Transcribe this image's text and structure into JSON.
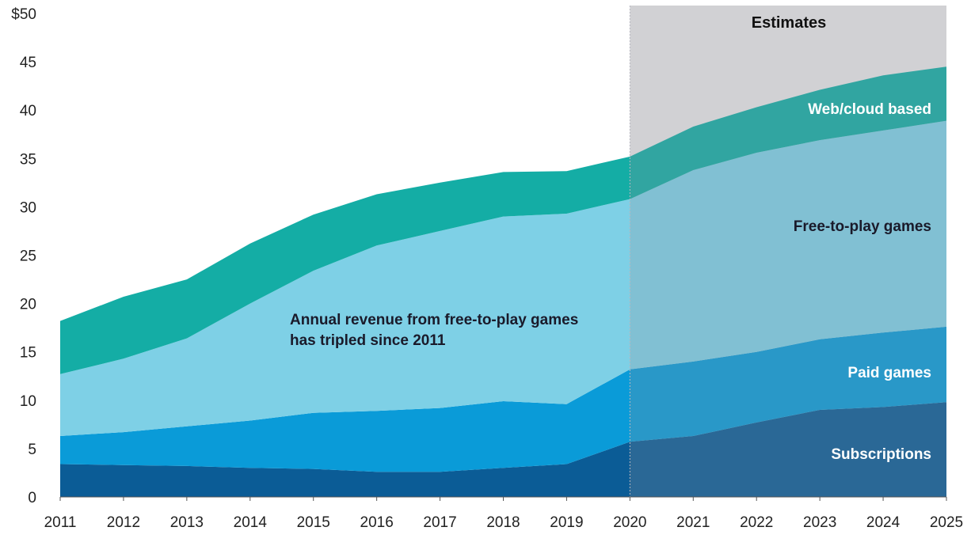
{
  "chart_data": {
    "type": "area",
    "stacked": true,
    "x": [
      2011,
      2012,
      2013,
      2014,
      2015,
      2016,
      2017,
      2018,
      2019,
      2020,
      2021,
      2022,
      2023,
      2024,
      2025
    ],
    "series": [
      {
        "name": "Subscriptions",
        "color": "#0b5c96",
        "values": [
          3.4,
          3.3,
          3.2,
          3.0,
          2.9,
          2.6,
          2.6,
          3.0,
          3.4,
          5.7,
          6.3,
          7.7,
          9.0,
          9.3,
          9.8
        ]
      },
      {
        "name": "Paid games",
        "color": "#0a9bd8",
        "values": [
          2.9,
          3.4,
          4.1,
          4.9,
          5.8,
          6.3,
          6.6,
          6.9,
          6.2,
          7.5,
          7.7,
          7.3,
          7.3,
          7.7,
          7.8
        ]
      },
      {
        "name": "Free-to-play games",
        "color": "#7ed0e6",
        "values": [
          6.4,
          7.6,
          9.1,
          12.1,
          14.7,
          17.1,
          18.3,
          19.1,
          19.7,
          17.6,
          19.8,
          20.6,
          20.6,
          20.9,
          21.3
        ]
      },
      {
        "name": "Web/cloud based",
        "color": "#14ada5",
        "values": [
          5.5,
          6.4,
          6.1,
          6.2,
          5.8,
          5.3,
          5.0,
          4.6,
          4.4,
          4.4,
          4.5,
          4.7,
          5.2,
          5.7,
          5.6
        ]
      }
    ],
    "ylim": [
      0,
      50
    ],
    "yticks": [
      "$50",
      "45",
      "40",
      "35",
      "30",
      "25",
      "20",
      "15",
      "10",
      "5",
      "0"
    ],
    "xticks": [
      "2011",
      "2012",
      "2013",
      "2014",
      "2015",
      "2016",
      "2017",
      "2018",
      "2019",
      "2020",
      "2021",
      "2022",
      "2023",
      "2024",
      "2025"
    ],
    "estimates_from": 2020,
    "estimates_label": "Estimates",
    "series_labels": {
      "web": "Web/cloud based",
      "free": "Free-to-play games",
      "paid": "Paid games",
      "subs": "Subscriptions"
    },
    "annotation": {
      "line1": "Annual revenue from free-to-play games",
      "line2": "has tripled since 2011"
    },
    "grid": false
  }
}
